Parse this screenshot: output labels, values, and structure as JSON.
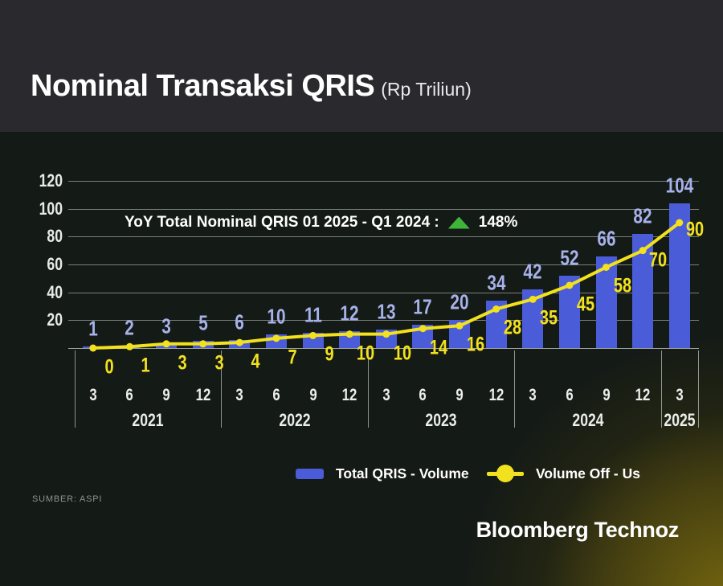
{
  "header": {
    "title": "Nominal Transaksi QRIS",
    "subtitle": "(Rp Triliun)"
  },
  "annotation": {
    "label": "YoY Total Nominal QRIS 01 2025 - Q1 2024 :",
    "value": "148%"
  },
  "legend": [
    {
      "label": "Total QRIS - Volume",
      "type": "bar"
    },
    {
      "label": "Volume Off - Us",
      "type": "line"
    }
  ],
  "source": "SUMBER: ASPI",
  "brand": "Bloomberg Technoz",
  "colors": {
    "bar": "#4a5cd8",
    "bar_label": "#a8b2ea",
    "line": "#f2e11e",
    "green_arrow": "#3eb53a",
    "header_background": "#2a2a2e",
    "body_background": "#141a16"
  },
  "chart_data": {
    "type": "bar",
    "subtype": "bar+line combo",
    "title": "Nominal Transaksi QRIS (Rp Triliun)",
    "y_ticks": [
      20,
      40,
      60,
      80,
      100,
      120
    ],
    "ylim": [
      0,
      130
    ],
    "grid": true,
    "legend_position": "bottom",
    "groups": [
      {
        "year": "2021",
        "quarters": [
          "3",
          "6",
          "9",
          "12"
        ]
      },
      {
        "year": "2022",
        "quarters": [
          "3",
          "6",
          "9",
          "12"
        ]
      },
      {
        "year": "2023",
        "quarters": [
          "3",
          "6",
          "9",
          "12"
        ]
      },
      {
        "year": "2024",
        "quarters": [
          "3",
          "6",
          "9",
          "12"
        ]
      },
      {
        "year": "2025",
        "quarters": [
          "3"
        ]
      }
    ],
    "series": [
      {
        "name": "Total QRIS - Volume",
        "type": "bar",
        "values": [
          1,
          2,
          3,
          5,
          6,
          10,
          11,
          12,
          13,
          17,
          20,
          34,
          42,
          52,
          66,
          82,
          104
        ]
      },
      {
        "name": "Volume Off - Us",
        "type": "line",
        "values": [
          0,
          1,
          3,
          3,
          4,
          7,
          9,
          10,
          10,
          14,
          16,
          28,
          35,
          45,
          58,
          70,
          90
        ]
      }
    ],
    "annotation_text": "YoY Total Nominal QRIS 01 2025 - Q1 2024 : ▲ 148%"
  }
}
